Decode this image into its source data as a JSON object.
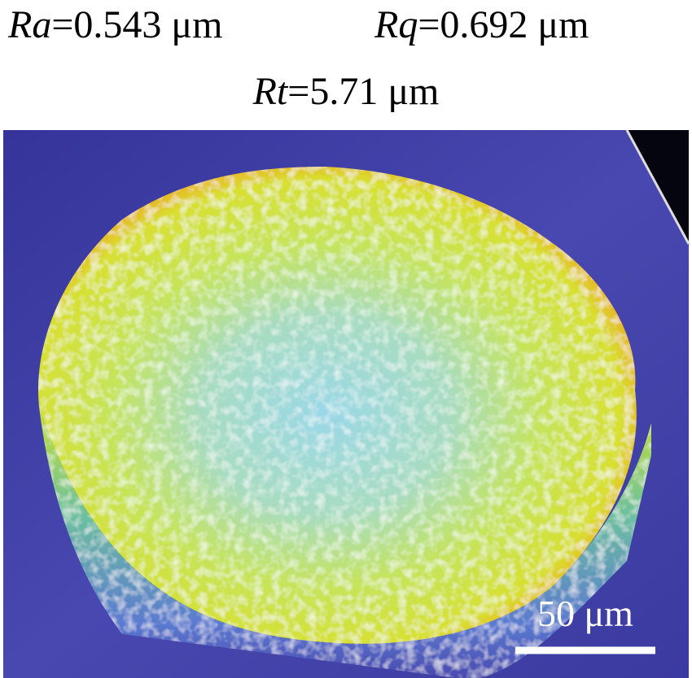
{
  "labels": [
    {
      "symbol": "Ra",
      "text": "=0.543 μm"
    },
    {
      "symbol": "Rq",
      "text": "=0.692 μm"
    },
    {
      "symbol": "Rt",
      "text": "=5.71 μm"
    }
  ],
  "scale_bar": {
    "label": "50 μm"
  }
}
